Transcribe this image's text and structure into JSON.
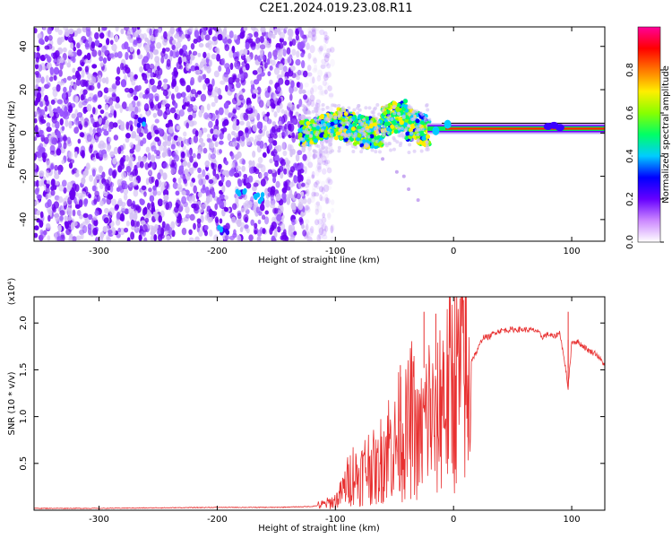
{
  "page": {
    "title": "C2E1.2024.019.23.08.R11"
  },
  "colors": {
    "axis": "#000000",
    "snr_line": "#e83030",
    "spectrum_low": "#d8c8f0",
    "spectrum_mid": "#6a00ff"
  },
  "chart_data": [
    {
      "type": "heatmap",
      "title": "C2E1.2024.019.23.08.R11",
      "xlabel": "Height of straight line (km)",
      "ylabel": "Frequency (Hz)",
      "xlim": [
        -355,
        128
      ],
      "ylim": [
        -50,
        49
      ],
      "x_ticks": [
        {
          "value": -300,
          "label": "-300"
        },
        {
          "value": -200,
          "label": "-200"
        },
        {
          "value": -100,
          "label": "-100"
        },
        {
          "value": 0,
          "label": "0"
        },
        {
          "value": 100,
          "label": "100"
        }
      ],
      "y_ticks": [
        {
          "value": -40,
          "label": "-40"
        },
        {
          "value": -20,
          "label": "-20"
        },
        {
          "value": 0,
          "label": "0"
        },
        {
          "value": 20,
          "label": "20"
        },
        {
          "value": 40,
          "label": "40"
        }
      ],
      "colorbar": {
        "label": "Normalized spectral amplitude",
        "range": [
          0,
          1
        ],
        "ticks": [
          {
            "value": 0.0,
            "label": "0.0"
          },
          {
            "value": 0.2,
            "label": "0.2"
          },
          {
            "value": 0.4,
            "label": "0.4"
          },
          {
            "value": 0.6,
            "label": "0.6"
          },
          {
            "value": 0.8,
            "label": "0.8"
          }
        ],
        "stops": [
          "#ffffff",
          "#cc88ff",
          "#6600ff",
          "#0000ff",
          "#00ccff",
          "#00ff66",
          "#88ff00",
          "#ffee00",
          "#ff7700",
          "#ff0000",
          "#ff0099"
        ]
      },
      "bands": [
        {
          "name": "noise",
          "x": [
            -355,
            -125
          ],
          "y_center": 0,
          "half_width": 50,
          "amplitude": 0.3
        },
        {
          "name": "transition",
          "x": [
            -130,
            -20
          ],
          "y_center": 2,
          "half_width": 7,
          "amplitude": 0.5
        },
        {
          "name": "carrier",
          "x": [
            -10,
            128
          ],
          "y_center": 2,
          "half_width": 2,
          "amplitude": 0.8
        }
      ],
      "tone_track": [
        {
          "x": -265,
          "y": 5
        },
        {
          "x": -180,
          "y": -28
        },
        {
          "x": -165,
          "y": -30
        },
        {
          "x": -195,
          "y": -45
        }
      ]
    },
    {
      "type": "line",
      "xlabel": "Height of straight line (km)",
      "ylabel": "SNR (10 * v/v)",
      "scale_label": "(x10⁴)",
      "xlim": [
        -355,
        128
      ],
      "ylim": [
        0,
        2.28
      ],
      "x_ticks": [
        {
          "value": -300,
          "label": "-300"
        },
        {
          "value": -200,
          "label": "-200"
        },
        {
          "value": -100,
          "label": "-100"
        },
        {
          "value": 0,
          "label": "0"
        },
        {
          "value": 100,
          "label": "100"
        }
      ],
      "y_ticks": [
        {
          "value": 0.5,
          "label": "0.5"
        },
        {
          "value": 1.0,
          "label": "1.0"
        },
        {
          "value": 1.5,
          "label": "1.5"
        },
        {
          "value": 2.0,
          "label": "2.0"
        }
      ],
      "series": [
        {
          "color": "#e83030",
          "x": [
            -355,
            -300,
            -250,
            -200,
            -150,
            -120,
            -110,
            -100,
            -95,
            -90,
            -85,
            -80,
            -75,
            -70,
            -65,
            -60,
            -55,
            -50,
            -45,
            -40,
            -35,
            -30,
            -25,
            -20,
            -15,
            -10,
            -5,
            0,
            5,
            8,
            10,
            12,
            15,
            20,
            25,
            30,
            35,
            40,
            50,
            60,
            70,
            75,
            80,
            85,
            90,
            95,
            97,
            100,
            105,
            110,
            115,
            120,
            125,
            128
          ],
          "y": [
            0.02,
            0.02,
            0.025,
            0.03,
            0.03,
            0.04,
            0.06,
            0.1,
            0.18,
            0.3,
            0.4,
            0.35,
            0.45,
            0.5,
            0.4,
            0.6,
            0.7,
            0.65,
            0.85,
            0.8,
            1.0,
            0.7,
            0.9,
            1.1,
            0.8,
            1.3,
            1.2,
            1.45,
            1.35,
            1.6,
            1.5,
            1.0,
            1.6,
            1.7,
            1.85,
            1.85,
            1.9,
            1.92,
            1.93,
            1.93,
            1.92,
            1.85,
            1.88,
            1.85,
            1.9,
            1.5,
            1.3,
            1.8,
            1.8,
            1.75,
            1.7,
            1.68,
            1.6,
            1.55
          ]
        }
      ],
      "spikes": [
        {
          "x": -45,
          "y": 1.55
        },
        {
          "x": -25,
          "y": 2.12
        },
        {
          "x": -15,
          "y": 2.1
        },
        {
          "x": 10,
          "y": 2.28
        },
        {
          "x": 97,
          "y": 2.12
        },
        {
          "x": 97,
          "y": 1.32
        },
        {
          "x": 12,
          "y": 0.78
        }
      ]
    }
  ]
}
